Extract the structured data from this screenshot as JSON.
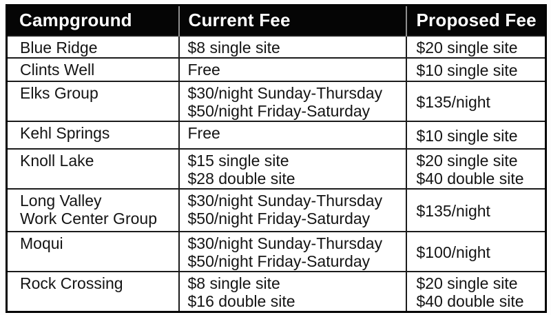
{
  "table": {
    "columns": [
      "Campground",
      "Current Fee",
      "Proposed Fee"
    ],
    "rows": [
      {
        "campground": [
          "Blue Ridge"
        ],
        "current_fee": [
          "$8 single site"
        ],
        "proposed_fee": [
          "$20 single site"
        ]
      },
      {
        "campground": [
          "Clints Well"
        ],
        "current_fee": [
          "Free"
        ],
        "proposed_fee": [
          "$10 single site"
        ]
      },
      {
        "campground": [
          "Elks Group"
        ],
        "current_fee": [
          "$30/night Sunday-Thursday",
          "$50/night Friday-Saturday"
        ],
        "proposed_fee": [
          "$135/night"
        ]
      },
      {
        "campground": [
          "Kehl Springs"
        ],
        "current_fee": [
          "Free"
        ],
        "proposed_fee": [
          "$10 single site"
        ]
      },
      {
        "campground": [
          "Knoll Lake"
        ],
        "current_fee": [
          "$15 single site",
          "$28 double site"
        ],
        "proposed_fee": [
          "$20 single site",
          "$40 double site"
        ]
      },
      {
        "campground": [
          "Long Valley",
          "Work Center Group"
        ],
        "current_fee": [
          "$30/night Sunday-Thursday",
          "$50/night Friday-Saturday"
        ],
        "proposed_fee": [
          "$135/night"
        ]
      },
      {
        "campground": [
          "Moqui"
        ],
        "current_fee": [
          "$30/night Sunday-Thursday",
          "$50/night Friday-Saturday"
        ],
        "proposed_fee": [
          "$100/night"
        ]
      },
      {
        "campground": [
          "Rock Crossing"
        ],
        "current_fee": [
          "$8 single site",
          "$16 double site"
        ],
        "proposed_fee": [
          "$20 single site",
          "$40 double site"
        ]
      }
    ]
  },
  "chart_data": {
    "type": "table",
    "columns": [
      "Campground",
      "Current Fee",
      "Proposed Fee"
    ],
    "rows": [
      [
        "Blue Ridge",
        "$8 single site",
        "$20 single site"
      ],
      [
        "Clints Well",
        "Free",
        "$10 single site"
      ],
      [
        "Elks Group",
        "$30/night Sunday-Thursday $50/night Friday-Saturday",
        "$135/night"
      ],
      [
        "Kehl Springs",
        "Free",
        "$10 single site"
      ],
      [
        "Knoll Lake",
        "$15 single site $28 double site",
        "$20 single site $40 double site"
      ],
      [
        "Long Valley Work Center Group",
        "$30/night Sunday-Thursday $50/night Friday-Saturday",
        "$135/night"
      ],
      [
        "Moqui",
        "$30/night Sunday-Thursday $50/night Friday-Saturday",
        "$100/night"
      ],
      [
        "Rock Crossing",
        "$8 single site $16 double site",
        "$20 single site $40 double site"
      ]
    ]
  },
  "colors": {
    "header_background": "#050505",
    "header_text": "#ffffff",
    "header_divider": "#8f8f8f",
    "body_background": "#ffffff",
    "body_text": "#141414",
    "grid_border": "#1b1b1b",
    "outer_border": "#000000",
    "page_background": "#fdfdfd"
  }
}
